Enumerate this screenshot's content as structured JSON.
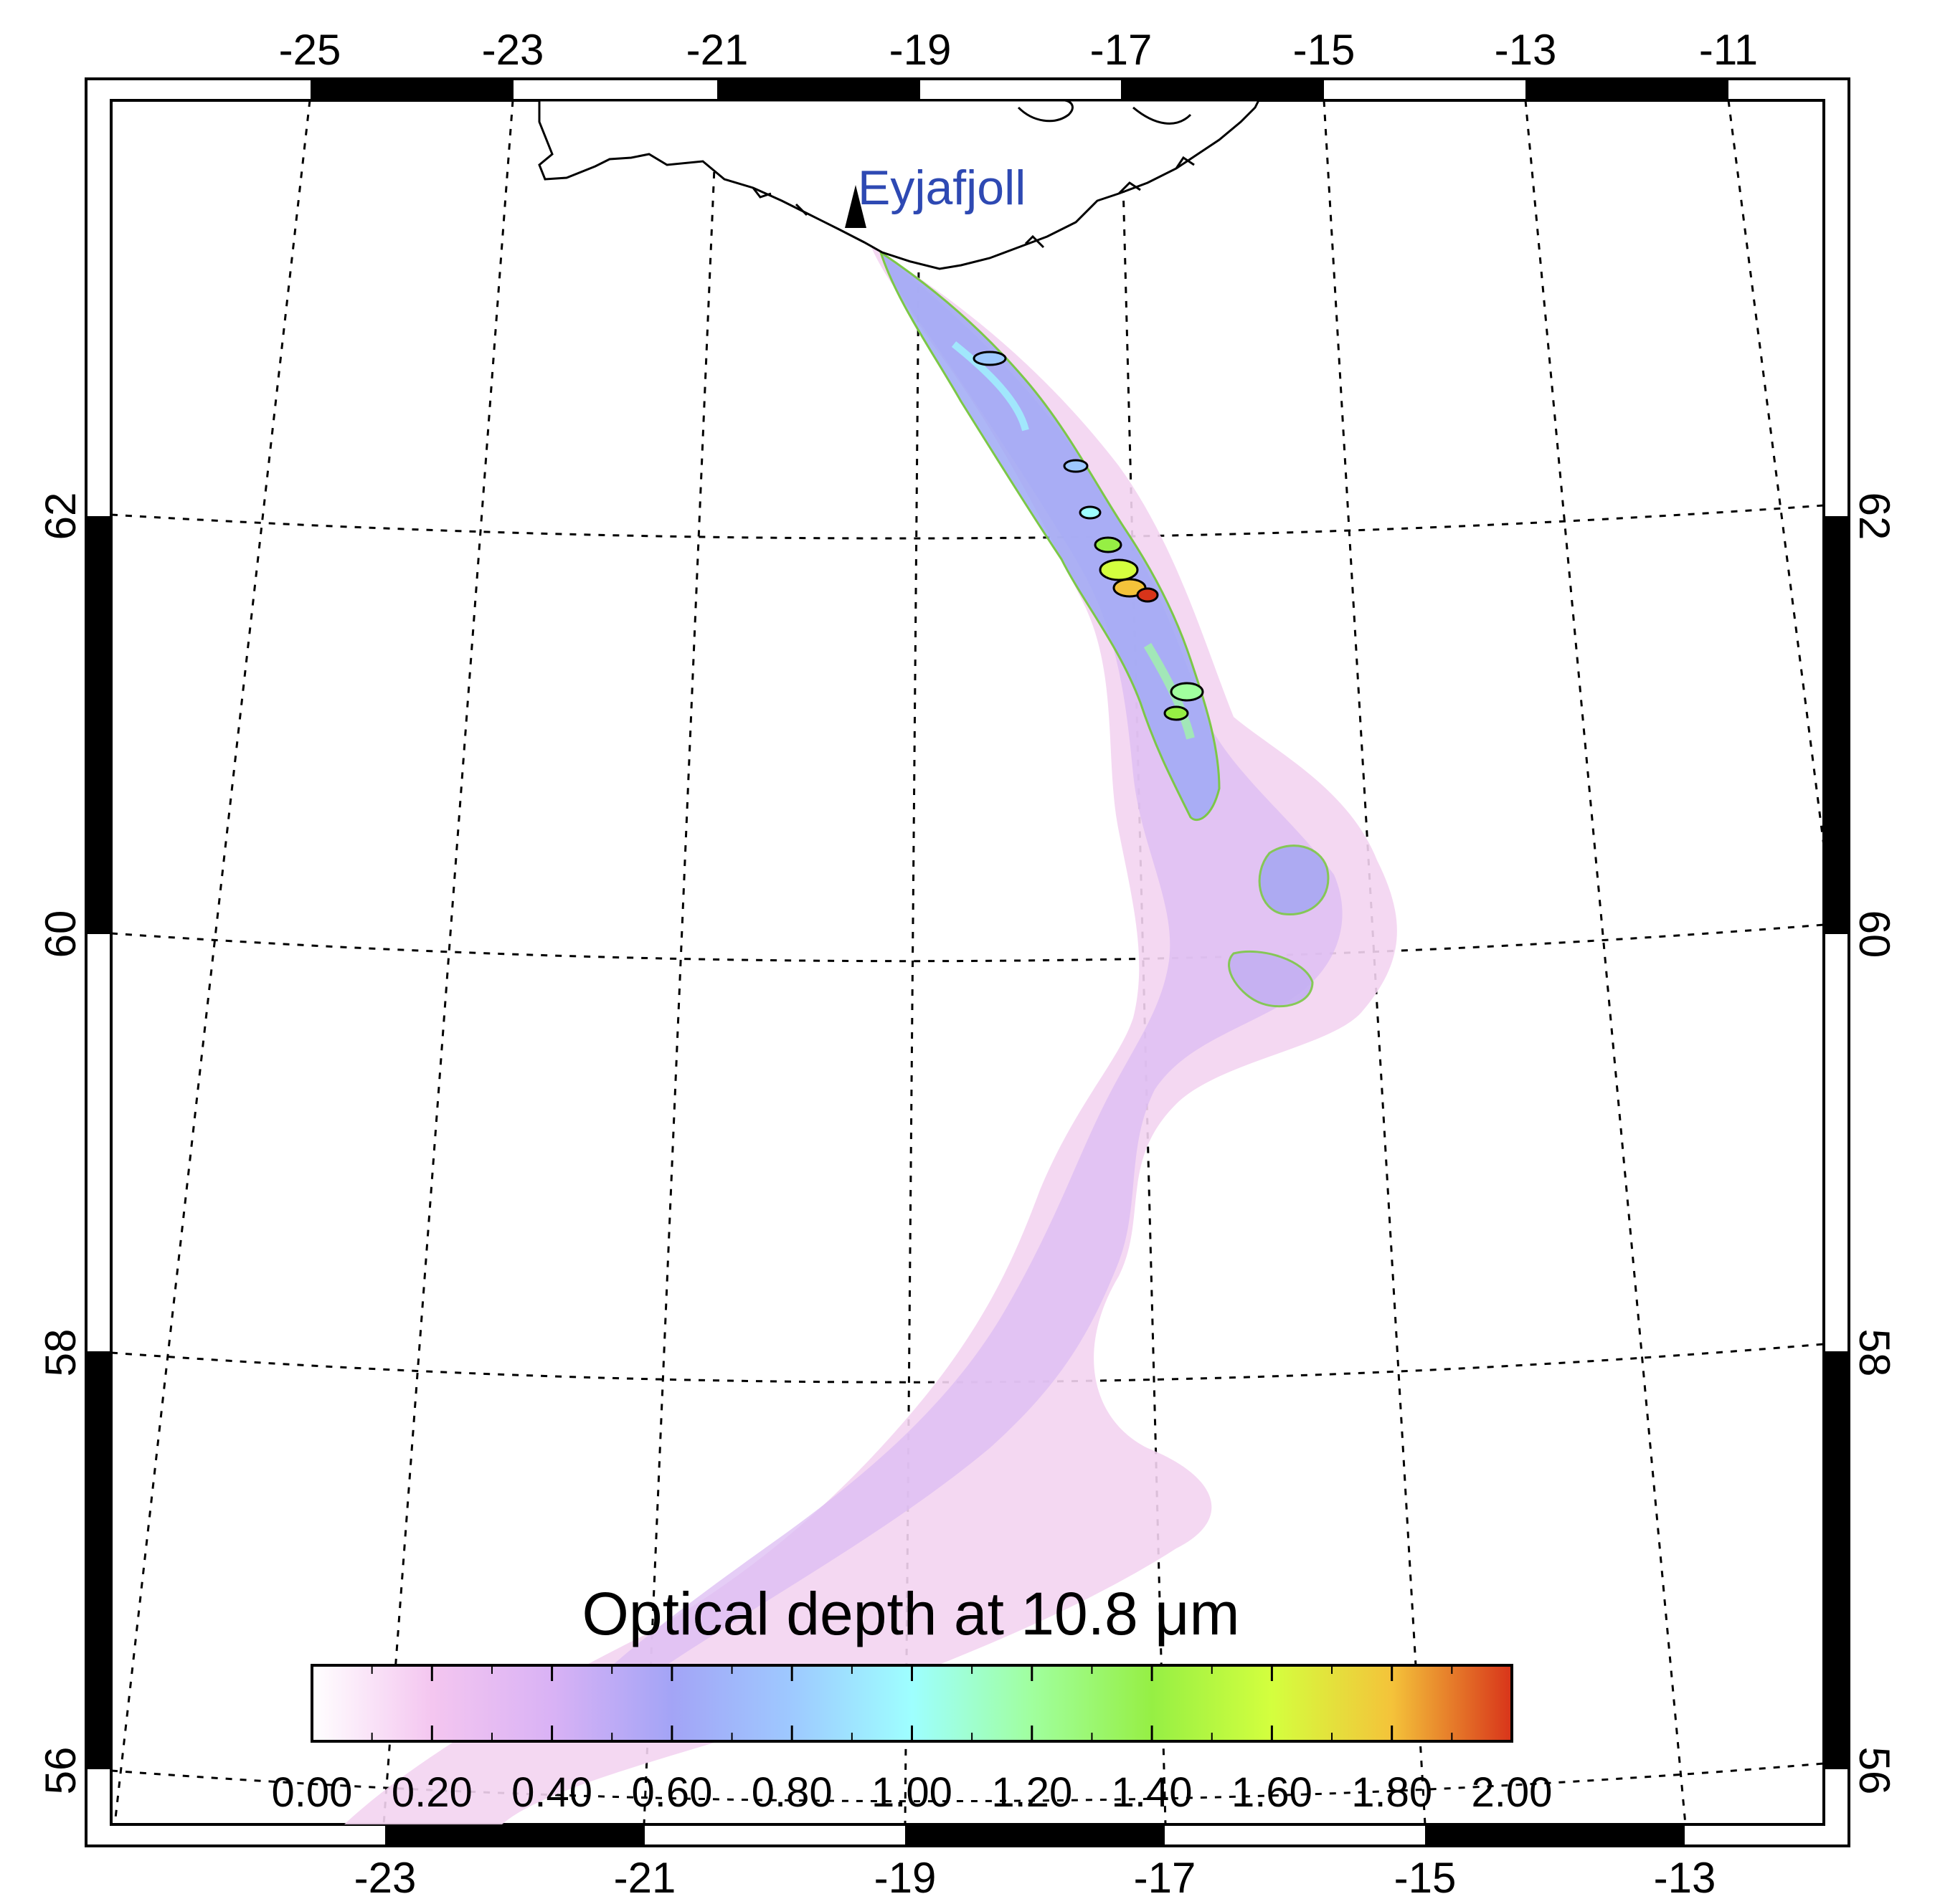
{
  "map": {
    "volcano_name": "Eyjafjoll",
    "top_lon_labels": [
      "-25",
      "-23",
      "-21",
      "-19",
      "-17",
      "-15",
      "-13",
      "-11"
    ],
    "bottom_lon_labels": [
      "-23",
      "-21",
      "-19",
      "-17",
      "-15",
      "-13"
    ],
    "lat_labels": [
      "62",
      "60",
      "58",
      "56"
    ],
    "colors": {
      "volcano_label": "#2e49b3",
      "grid": "#000000",
      "land": "#000000",
      "contour_low": "#7cc846",
      "contour_high": "#000000",
      "contour_faint": "#ffffff"
    }
  },
  "colorbar": {
    "title_prefix": "Optical depth at 10.8 ",
    "title_unit": "μm",
    "tick_labels": [
      "0.00",
      "0.20",
      "0.40",
      "0.60",
      "0.80",
      "1.00",
      "1.20",
      "1.40",
      "1.60",
      "1.80",
      "2.00"
    ],
    "range": [
      0.0,
      2.0
    ],
    "stops": [
      {
        "value": 0.0,
        "color": "#ffffff"
      },
      {
        "value": 0.2,
        "color": "#f4c6f0"
      },
      {
        "value": 0.4,
        "color": "#d9b2f5"
      },
      {
        "value": 0.6,
        "color": "#a3a4f6"
      },
      {
        "value": 0.8,
        "color": "#9ec9ff"
      },
      {
        "value": 1.0,
        "color": "#9effff"
      },
      {
        "value": 1.2,
        "color": "#a0ff9e"
      },
      {
        "value": 1.4,
        "color": "#96ef44"
      },
      {
        "value": 1.6,
        "color": "#d4ff3e"
      },
      {
        "value": 1.8,
        "color": "#f4c33a"
      },
      {
        "value": 2.0,
        "color": "#d8341a"
      }
    ]
  }
}
